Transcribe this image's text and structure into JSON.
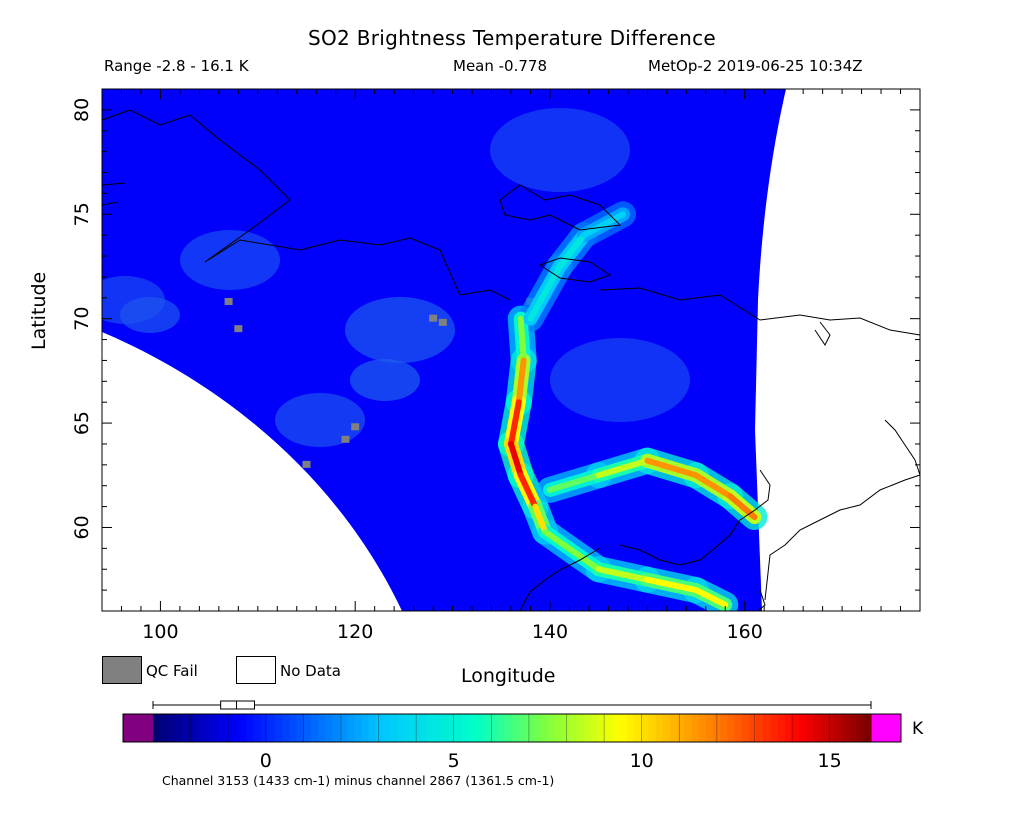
{
  "header": {
    "title": "SO2 Brightness Temperature Difference",
    "range": "Range -2.8 - 16.1 K",
    "mean": "Mean -0.778",
    "satellite_time": "MetOp-2 2019-06-25 10:34Z"
  },
  "legend": {
    "qc_fail_label": "QC Fail",
    "qc_fail_color": "#808080",
    "no_data_label": "No Data",
    "no_data_color": "#ffffff"
  },
  "colorbar": {
    "units": "K",
    "channel_note": "Channel 3153 (1433 cm-1) minus channel 2867 (1361.5 cm-1)",
    "ticks": [
      "0",
      "5",
      "10",
      "15"
    ],
    "tick_values": [
      0,
      5,
      10,
      15
    ],
    "range": [
      -3.0,
      16.1
    ],
    "under_color": "#800080",
    "over_color": "#ff00ff"
  },
  "chart_data": {
    "type": "heatmap",
    "title": "SO2 Brightness Temperature Difference",
    "xlabel": "Longitude",
    "ylabel": "Latitude",
    "xlim": [
      94,
      178
    ],
    "ylim": [
      56,
      81
    ],
    "x_ticks": [
      "100",
      "120",
      "140",
      "160"
    ],
    "x_tick_values": [
      100,
      120,
      140,
      160
    ],
    "y_ticks": [
      "60",
      "65",
      "70",
      "75",
      "80"
    ],
    "y_tick_values": [
      60,
      65,
      70,
      75,
      80
    ],
    "colorbar_ticks": [
      0,
      5,
      10,
      15
    ],
    "background_value": -0.778,
    "stats": {
      "min": -2.8,
      "max": 16.1,
      "mean": -0.778
    },
    "plumes": [
      {
        "name": "main plume",
        "points": [
          {
            "lon": 137.0,
            "lat": 70.0,
            "value": 5
          },
          {
            "lon": 137.3,
            "lat": 68.0,
            "value": 10
          },
          {
            "lon": 136.8,
            "lat": 66.0,
            "value": 13
          },
          {
            "lon": 136.0,
            "lat": 64.0,
            "value": 14
          },
          {
            "lon": 137.0,
            "lat": 62.5,
            "value": 15
          },
          {
            "lon": 138.5,
            "lat": 61.0,
            "value": 12
          },
          {
            "lon": 139.5,
            "lat": 59.8,
            "value": 8
          }
        ]
      },
      {
        "name": "northeast branch",
        "points": [
          {
            "lon": 138.0,
            "lat": 70.0,
            "value": 4
          },
          {
            "lon": 141.0,
            "lat": 72.5,
            "value": 5
          },
          {
            "lon": 143.5,
            "lat": 74.0,
            "value": 4
          },
          {
            "lon": 147.5,
            "lat": 75.0,
            "value": 3
          }
        ]
      },
      {
        "name": "east branch",
        "points": [
          {
            "lon": 140.0,
            "lat": 61.8,
            "value": 8
          },
          {
            "lon": 145.0,
            "lat": 62.5,
            "value": 6
          },
          {
            "lon": 150.0,
            "lat": 63.2,
            "value": 11
          },
          {
            "lon": 155.0,
            "lat": 62.5,
            "value": 12
          },
          {
            "lon": 158.5,
            "lat": 61.5,
            "value": 11
          },
          {
            "lon": 161.0,
            "lat": 60.5,
            "value": 13
          }
        ]
      },
      {
        "name": "southeast branch",
        "points": [
          {
            "lon": 139.5,
            "lat": 59.8,
            "value": 7
          },
          {
            "lon": 145.0,
            "lat": 58.0,
            "value": 8
          },
          {
            "lon": 150.0,
            "lat": 57.5,
            "value": 9
          },
          {
            "lon": 155.0,
            "lat": 57.0,
            "value": 10
          },
          {
            "lon": 158.0,
            "lat": 56.3,
            "value": 9
          }
        ]
      }
    ]
  }
}
